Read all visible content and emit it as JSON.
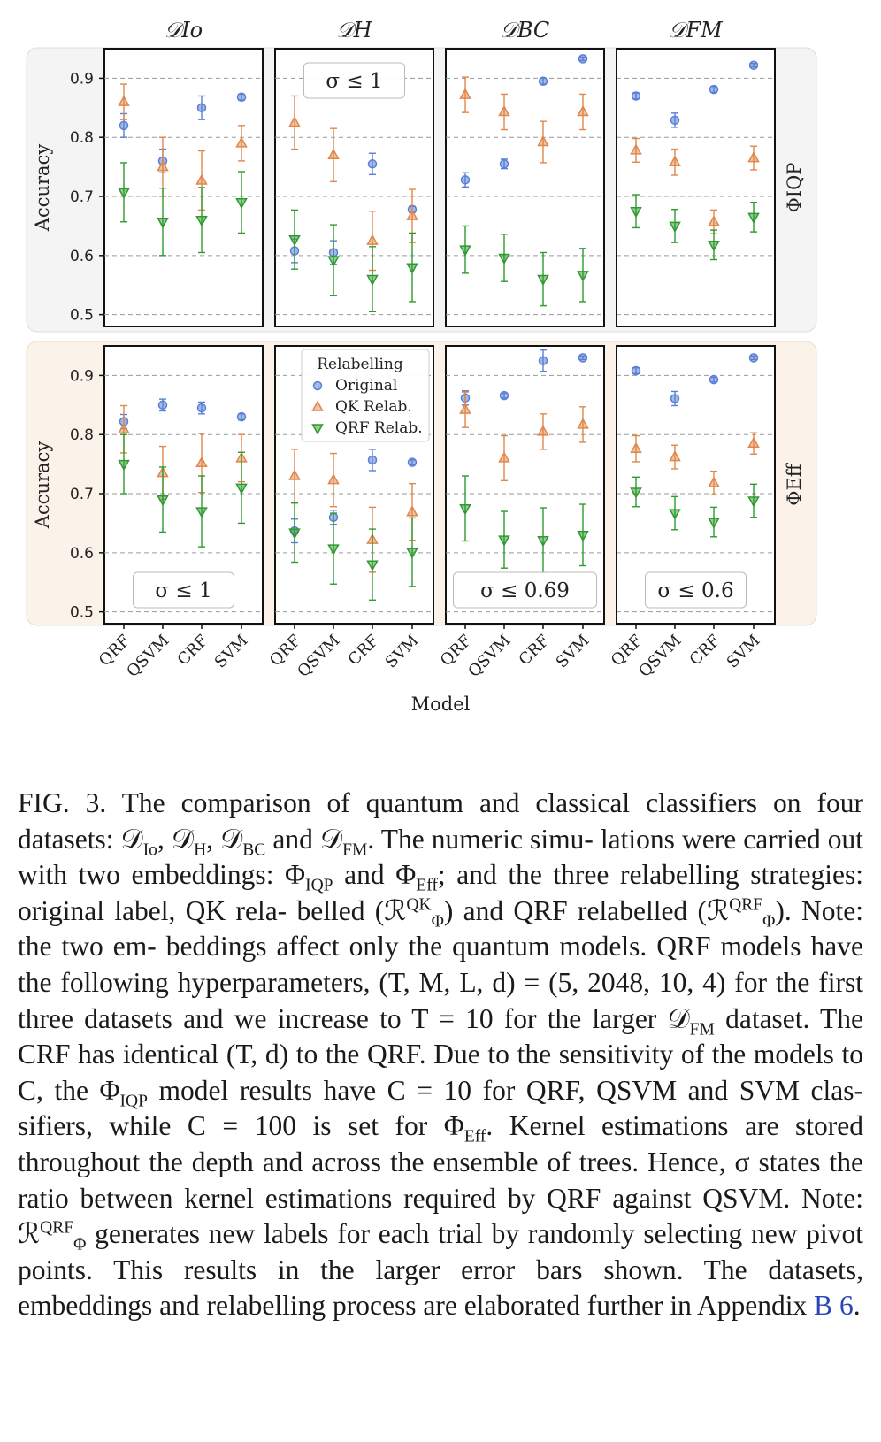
{
  "figure": {
    "column_headers": [
      "𝒟Io",
      "𝒟H",
      "𝒟BC",
      "𝒟FM"
    ],
    "row_labels": [
      "ΦIQP",
      "ΦEff"
    ],
    "y_axis_label": "Accuracy",
    "x_axis_label": "Model",
    "models": [
      "QRF",
      "QSVM",
      "CRF",
      "SVM"
    ],
    "y_ticks": [
      "0.5",
      "0.6",
      "0.7",
      "0.8",
      "0.9"
    ],
    "legend": {
      "title": "Relabelling",
      "entries": [
        "Original",
        "QK Relab.",
        "QRF Relab."
      ]
    },
    "colors": {
      "original": "#5a7fd6",
      "qk": "#e0874a",
      "qrf": "#2e9a2e",
      "row1_bg": "#f4f4f4",
      "row2_bg": "#fbf3ea"
    },
    "sigma_labels": {
      "r0c1": "σ ≤ 1",
      "r1c0": "σ ≤ 1",
      "r1c2": "σ ≤ 0.69",
      "r1c3": "σ ≤ 0.6"
    }
  },
  "chart_data": {
    "type": "scatter",
    "ylim": [
      0.48,
      0.95
    ],
    "categories": [
      "QRF",
      "QSVM",
      "CRF",
      "SVM"
    ],
    "panels": [
      {
        "row": "ΦIQP",
        "col": "𝒟Io",
        "series": [
          {
            "name": "Original",
            "values": [
              0.82,
              0.76,
              0.85,
              0.868
            ],
            "err": [
              0.02,
              0.02,
              0.02,
              0.005
            ]
          },
          {
            "name": "QK Relab.",
            "values": [
              0.86,
              0.75,
              0.727,
              0.79
            ],
            "err": [
              0.03,
              0.05,
              0.05,
              0.03
            ]
          },
          {
            "name": "QRF Relab.",
            "values": [
              0.707,
              0.657,
              0.66,
              0.69
            ],
            "err": [
              0.05,
              0.057,
              0.055,
              0.052
            ]
          }
        ]
      },
      {
        "row": "ΦIQP",
        "col": "𝒟H",
        "series": [
          {
            "name": "Original",
            "values": [
              0.608,
              0.605,
              0.755,
              0.678
            ],
            "err": [
              0.02,
              0.02,
              0.018,
              0.005
            ]
          },
          {
            "name": "QK Relab.",
            "values": [
              0.825,
              0.77,
              0.625,
              0.667
            ],
            "err": [
              0.045,
              0.045,
              0.05,
              0.045
            ]
          },
          {
            "name": "QRF Relab.",
            "values": [
              0.627,
              0.592,
              0.56,
              0.58
            ],
            "err": [
              0.05,
              0.06,
              0.055,
              0.058
            ]
          }
        ]
      },
      {
        "row": "ΦIQP",
        "col": "𝒟BC",
        "series": [
          {
            "name": "Original",
            "values": [
              0.728,
              0.755,
              0.895,
              0.933
            ],
            "err": [
              0.012,
              0.008,
              0.005,
              0.003
            ]
          },
          {
            "name": "QK Relab.",
            "values": [
              0.872,
              0.843,
              0.792,
              0.843
            ],
            "err": [
              0.03,
              0.03,
              0.035,
              0.03
            ]
          },
          {
            "name": "QRF Relab.",
            "values": [
              0.61,
              0.596,
              0.56,
              0.567
            ],
            "err": [
              0.04,
              0.04,
              0.045,
              0.045
            ]
          }
        ]
      },
      {
        "row": "ΦIQP",
        "col": "𝒟FM",
        "series": [
          {
            "name": "Original",
            "values": [
              0.87,
              0.829,
              0.881,
              0.922
            ],
            "err": [
              0.005,
              0.012,
              0.005,
              0.003
            ]
          },
          {
            "name": "QK Relab.",
            "values": [
              0.778,
              0.758,
              0.657,
              0.765
            ],
            "err": [
              0.02,
              0.022,
              0.02,
              0.02
            ]
          },
          {
            "name": "QRF Relab.",
            "values": [
              0.675,
              0.65,
              0.618,
              0.665
            ],
            "err": [
              0.028,
              0.028,
              0.025,
              0.025
            ]
          }
        ]
      },
      {
        "row": "ΦEff",
        "col": "𝒟Io",
        "series": [
          {
            "name": "Original",
            "values": [
              0.822,
              0.85,
              0.845,
              0.83
            ],
            "err": [
              0.012,
              0.01,
              0.01,
              0.005
            ]
          },
          {
            "name": "QK Relab.",
            "values": [
              0.809,
              0.735,
              0.752,
              0.76
            ],
            "err": [
              0.04,
              0.045,
              0.05,
              0.04
            ]
          },
          {
            "name": "QRF Relab.",
            "values": [
              0.75,
              0.69,
              0.67,
              0.71
            ],
            "err": [
              0.05,
              0.055,
              0.06,
              0.06
            ]
          }
        ]
      },
      {
        "row": "ΦEff",
        "col": "𝒟H",
        "series": [
          {
            "name": "Original",
            "values": [
              0.637,
              0.66,
              0.757,
              0.753
            ],
            "err": [
              0.02,
              0.012,
              0.018,
              0.004
            ]
          },
          {
            "name": "QK Relab.",
            "values": [
              0.73,
              0.723,
              0.622,
              0.669
            ],
            "err": [
              0.045,
              0.045,
              0.055,
              0.048
            ]
          },
          {
            "name": "QRF Relab.",
            "values": [
              0.634,
              0.607,
              0.58,
              0.601
            ],
            "err": [
              0.05,
              0.06,
              0.06,
              0.058
            ]
          }
        ]
      },
      {
        "row": "ΦEff",
        "col": "𝒟BC",
        "series": [
          {
            "name": "Original",
            "values": [
              0.862,
              0.866,
              0.925,
              0.93
            ],
            "err": [
              0.012,
              0.004,
              0.018,
              0.003
            ]
          },
          {
            "name": "QK Relab.",
            "values": [
              0.842,
              0.76,
              0.805,
              0.817
            ],
            "err": [
              0.03,
              0.038,
              0.03,
              0.03
            ]
          },
          {
            "name": "QRF Relab.",
            "values": [
              0.675,
              0.622,
              0.621,
              0.63
            ],
            "err": [
              0.055,
              0.048,
              0.055,
              0.052
            ]
          }
        ]
      },
      {
        "row": "ΦEff",
        "col": "𝒟FM",
        "series": [
          {
            "name": "Original",
            "values": [
              0.908,
              0.861,
              0.893,
              0.93
            ],
            "err": [
              0.005,
              0.012,
              0.004,
              0.003
            ]
          },
          {
            "name": "QK Relab.",
            "values": [
              0.776,
              0.762,
              0.718,
              0.785
            ],
            "err": [
              0.022,
              0.02,
              0.02,
              0.018
            ]
          },
          {
            "name": "QRF Relab.",
            "values": [
              0.703,
              0.667,
              0.652,
              0.688
            ],
            "err": [
              0.025,
              0.028,
              0.025,
              0.028
            ]
          }
        ]
      }
    ]
  },
  "caption": {
    "fig_label": "FIG. 3.",
    "line1": "The comparison of quantum and classical classifiers",
    "line2a": "on four datasets: 𝒟",
    "s_io": "Io",
    "line2b": ", 𝒟",
    "s_h": "H",
    "line2c": ", 𝒟",
    "s_bc": "BC",
    "line2d": " and 𝒟",
    "s_fm": "FM",
    "line2e": ". The numeric simu-",
    "line3a": "lations were carried out with two embeddings: Φ",
    "s_iqp": "IQP",
    "line3b": " and Φ",
    "s_eff": "Eff",
    "line3c": ";",
    "line4": "and the three relabelling strategies: original label, QK rela-",
    "line5a": "belled (ℛ",
    "sup_qk": "QK",
    "sub_phi1": "Φ",
    "line5b": ") and QRF relabelled (ℛ",
    "sup_qrf": "QRF",
    "sub_phi2": "Φ",
    "line5c": "). Note: the two em-",
    "line6": "beddings affect only the quantum models. QRF models have",
    "line7": "the following hyperparameters, (T, M, L, d) = (5, 2048, 10, 4)",
    "line8": "for the first three datasets and we increase to T = 10 for",
    "line9a": "the larger 𝒟",
    "s_fm2": "FM",
    "line9b": " dataset. The CRF has identical (T, d) to the",
    "line10a": "QRF. Due to the sensitivity of the models to C, the Φ",
    "s_iqp2": "IQP",
    "line11": "model results have C = 10 for QRF, QSVM and SVM clas-",
    "line12a": "sifiers, while C = 100 is set for Φ",
    "s_eff2": "Eff",
    "line12b": ". Kernel estimations are",
    "line13": "stored throughout the depth and across the ensemble of trees.",
    "line14": "Hence, σ states the ratio between kernel estimations required",
    "line15a": "by QRF against QSVM. Note: ℛ",
    "sup_qrf2": "QRF",
    "sub_phi3": "Φ",
    "line15b": " generates new labels for",
    "line16": "each trial by randomly selecting new pivot points. This results",
    "line17": "in the larger error bars shown. The datasets, embeddings and",
    "line18a": "relabelling process are elaborated further in Appendix ",
    "link": "B 6",
    "line18b": "."
  }
}
